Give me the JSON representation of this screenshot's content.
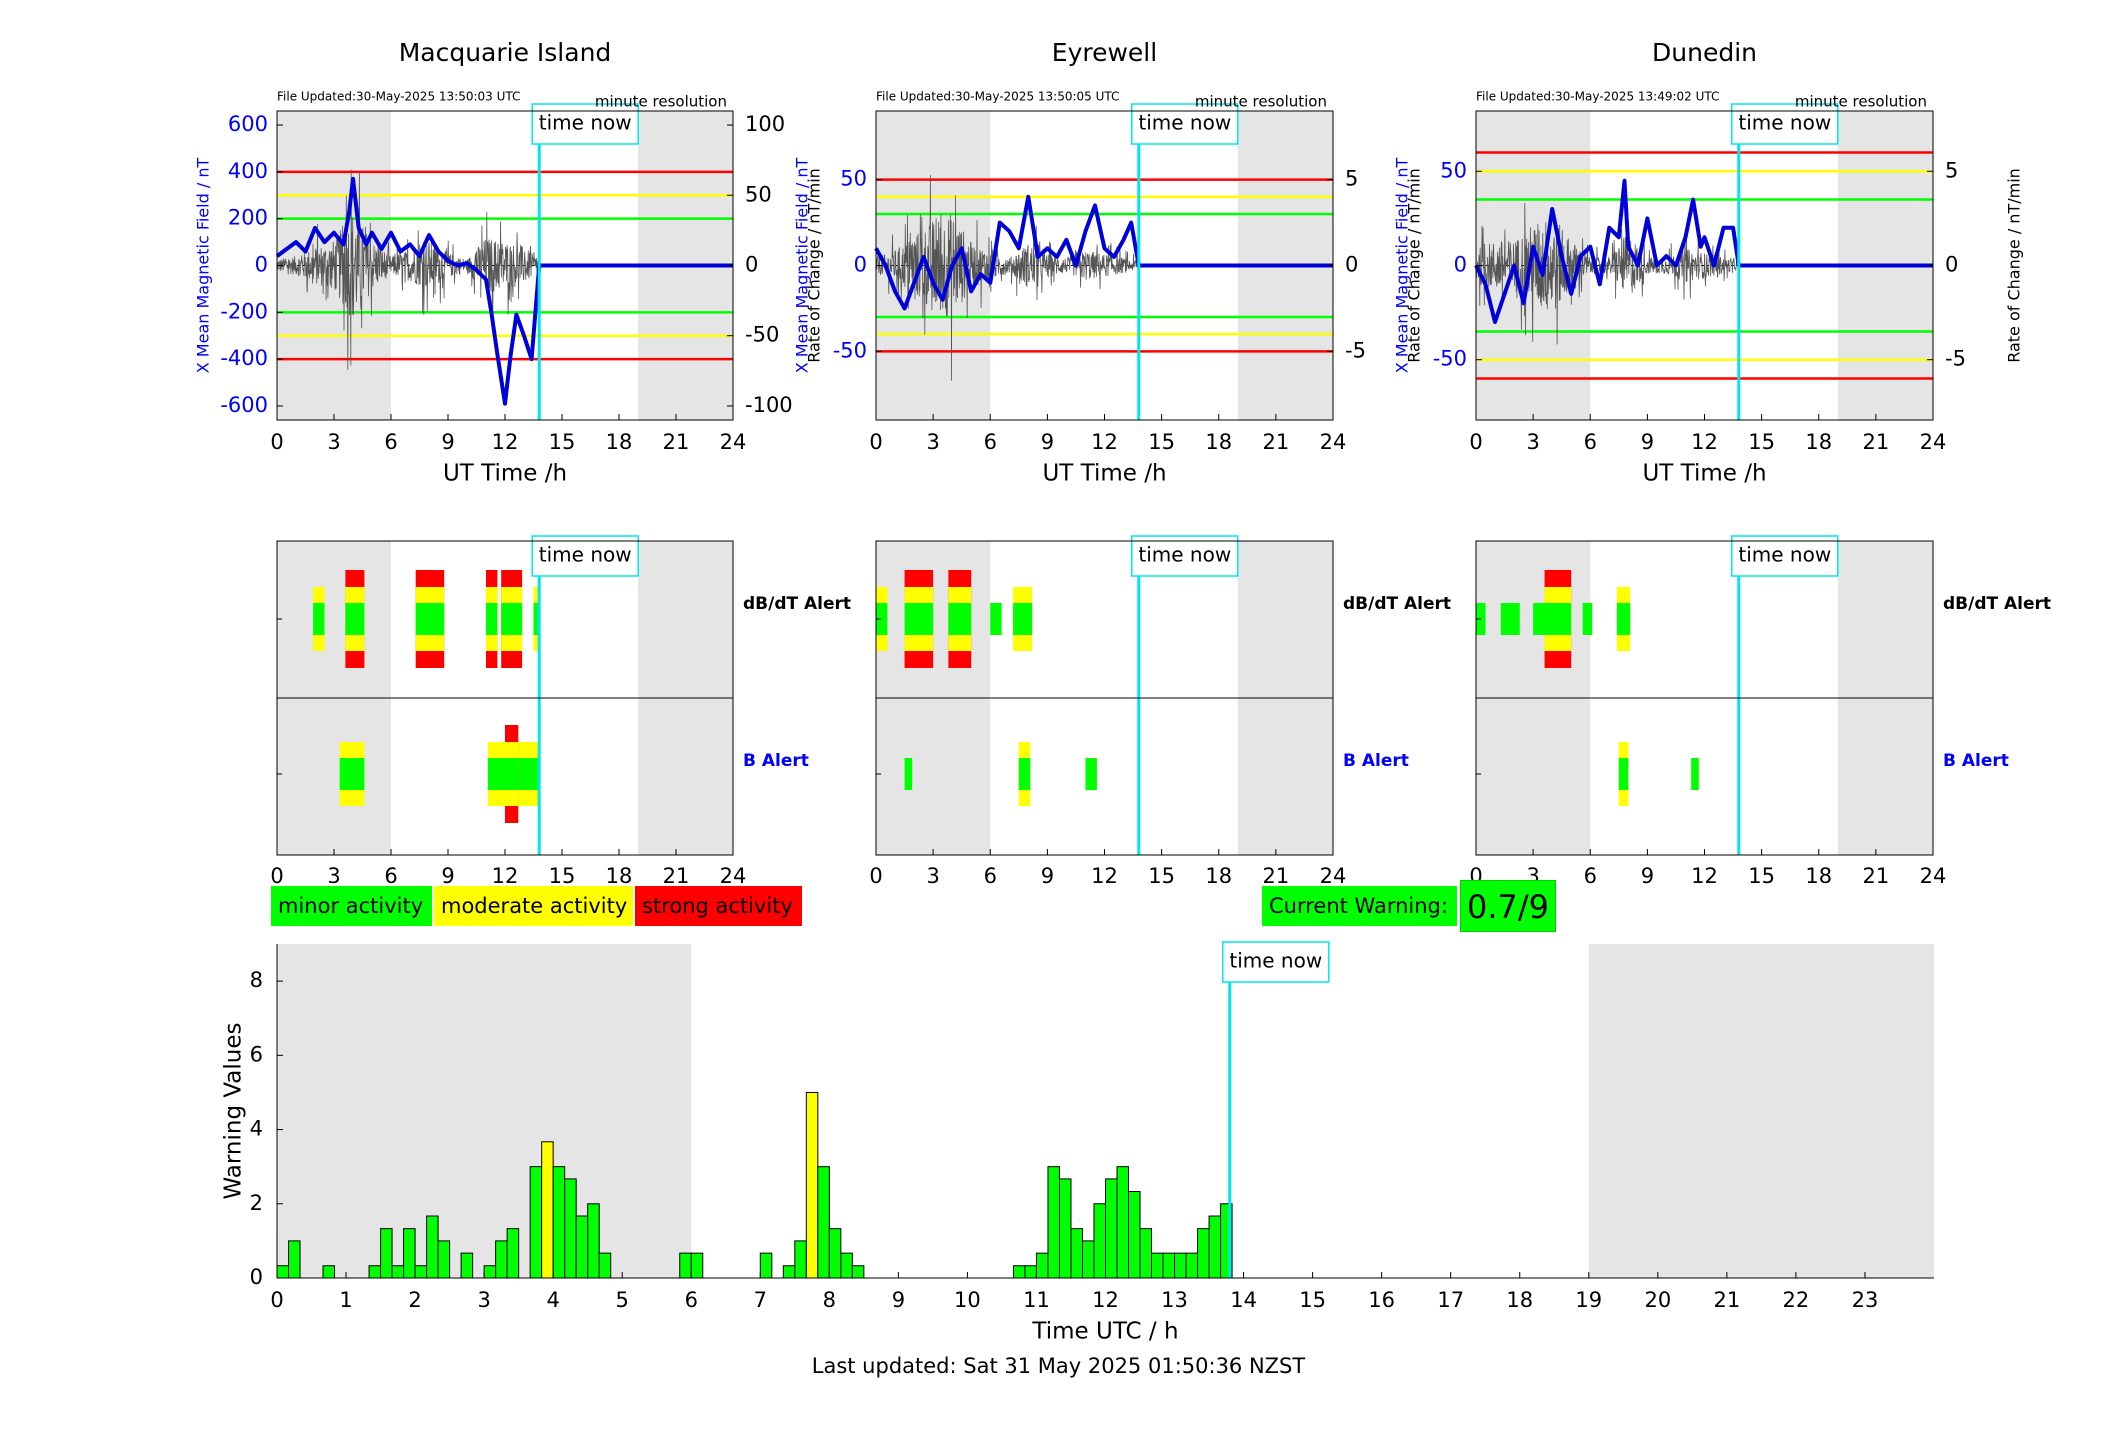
{
  "colors": {
    "minor": "#00ff00",
    "moderate": "#ffff00",
    "strong": "#ff0000",
    "field_line": "#0000dd",
    "now_line": "#00e5ee",
    "shade": "#e5e5e5",
    "rate_line": "#555555"
  },
  "chart_data": [
    {
      "type": "line",
      "title": "Macquarie Island",
      "file_updated": "File Updated:30-May-2025 13:50:03 UTC",
      "resolution": "minute resolution",
      "xlabel": "UT Time /h",
      "ylabel": "X Mean Magnetic Field / nT",
      "y2label": "Rate of Change / nT/min",
      "xlim": [
        0,
        24
      ],
      "xticks": [
        "0",
        "3",
        "6",
        "9",
        "12",
        "15",
        "18",
        "21",
        "24"
      ],
      "ylim": [
        -660,
        660
      ],
      "yticks": [
        "600",
        "400",
        "200",
        "0",
        "-200",
        "-400",
        "-600"
      ],
      "y2lim": [
        -110,
        110
      ],
      "y2ticks": [
        "100",
        "50",
        "0",
        "-50",
        "-100"
      ],
      "thresholds": [
        {
          "level": "strong",
          "values": [
            400,
            -400
          ]
        },
        {
          "level": "moderate",
          "values": [
            300,
            -300
          ]
        },
        {
          "level": "minor",
          "values": [
            200,
            -200
          ]
        }
      ],
      "shaded_ranges": [
        [
          0,
          6
        ],
        [
          19,
          24
        ]
      ],
      "time_now": 13.8,
      "time_now_label": "time now",
      "field_series": {
        "name": "X Mean Magnetic Field",
        "x": [
          0,
          0.5,
          1,
          1.5,
          2,
          2.5,
          3,
          3.5,
          3.8,
          4,
          4.3,
          4.7,
          5,
          5.5,
          6,
          6.5,
          7,
          7.5,
          8,
          8.5,
          9,
          9.5,
          10,
          10.5,
          11,
          11.3,
          11.6,
          12,
          12.3,
          12.6,
          13,
          13.4,
          13.8,
          24
        ],
        "values": [
          40,
          70,
          100,
          60,
          160,
          100,
          140,
          90,
          230,
          370,
          160,
          90,
          140,
          70,
          140,
          60,
          90,
          40,
          130,
          60,
          20,
          0,
          10,
          -20,
          -60,
          -210,
          -380,
          -590,
          -380,
          -210,
          -300,
          -400,
          0,
          0
        ]
      },
      "rate_series": {
        "name": "Rate of Change",
        "x": [
          0,
          1,
          2,
          3,
          4,
          5,
          6,
          7,
          8,
          9,
          10,
          11,
          12,
          13,
          13.8
        ],
        "amplitude": [
          10,
          15,
          30,
          40,
          90,
          40,
          15,
          25,
          40,
          20,
          10,
          45,
          40,
          30,
          10
        ]
      },
      "alerts": {
        "dbdt": {
          "label": "dB/dT Alert",
          "intervals": [
            [
              1.9,
              2.5,
              "moderate"
            ],
            [
              3.6,
              4.6,
              "strong"
            ],
            [
              7.3,
              8.8,
              "strong"
            ],
            [
              11,
              11.6,
              "strong"
            ],
            [
              11.8,
              12.9,
              "strong"
            ],
            [
              13.5,
              13.8,
              "moderate"
            ]
          ]
        },
        "b": {
          "label": "B Alert",
          "intervals": [
            [
              3.3,
              4.6,
              "moderate"
            ],
            [
              11.1,
              12,
              "moderate"
            ],
            [
              12,
              12.7,
              "strong"
            ],
            [
              12.7,
              13.8,
              "moderate"
            ]
          ]
        }
      }
    },
    {
      "type": "line",
      "title": "Eyrewell",
      "file_updated": "File Updated:30-May-2025 13:50:05 UTC",
      "resolution": "minute resolution",
      "xlabel": "UT Time /h",
      "ylabel": "X Mean Magnetic Field / nT",
      "y2label": "Rate of Change / nT/min",
      "xlim": [
        0,
        24
      ],
      "xticks": [
        "0",
        "3",
        "6",
        "9",
        "12",
        "15",
        "18",
        "21",
        "24"
      ],
      "ylim": [
        -90,
        90
      ],
      "yticks": [
        "50",
        "0",
        "-50"
      ],
      "y2lim": [
        -9,
        9
      ],
      "y2ticks": [
        "5",
        "0",
        "-5"
      ],
      "thresholds": [
        {
          "level": "strong",
          "values": [
            50,
            -50
          ]
        },
        {
          "level": "moderate",
          "values": [
            40,
            -40
          ]
        },
        {
          "level": "minor",
          "values": [
            30,
            -30
          ]
        }
      ],
      "shaded_ranges": [
        [
          0,
          6
        ],
        [
          19,
          24
        ]
      ],
      "time_now": 13.8,
      "time_now_label": "time now",
      "field_series": {
        "name": "X Mean Magnetic Field",
        "x": [
          0,
          0.5,
          1,
          1.5,
          2,
          2.5,
          3,
          3.5,
          4,
          4.5,
          5,
          5.5,
          6,
          6.5,
          7,
          7.5,
          8,
          8.5,
          9,
          9.5,
          10,
          10.5,
          11,
          11.5,
          12,
          12.5,
          13,
          13.4,
          13.8,
          24
        ],
        "values": [
          10,
          0,
          -15,
          -25,
          -10,
          5,
          -10,
          -20,
          0,
          10,
          -15,
          -5,
          -10,
          25,
          20,
          10,
          40,
          5,
          10,
          5,
          15,
          0,
          20,
          35,
          10,
          5,
          15,
          25,
          0,
          0
        ]
      },
      "rate_series": {
        "name": "Rate of Change",
        "x": [
          0,
          1,
          2,
          3,
          4,
          5,
          6,
          7,
          8,
          9,
          10,
          11,
          12,
          13,
          13.8
        ],
        "amplitude": [
          1,
          2,
          4,
          6,
          7,
          3,
          2,
          1,
          3,
          1.5,
          1,
          2,
          1.5,
          1,
          0.5
        ]
      },
      "alerts": {
        "dbdt": {
          "label": "dB/dT Alert",
          "intervals": [
            [
              0,
              0.6,
              "moderate"
            ],
            [
              1.5,
              3,
              "strong"
            ],
            [
              3.8,
              5,
              "strong"
            ],
            [
              6,
              6.6,
              "minor"
            ],
            [
              7.2,
              8.2,
              "moderate"
            ]
          ]
        },
        "b": {
          "label": "B Alert",
          "intervals": [
            [
              1.5,
              1.9,
              "minor"
            ],
            [
              7.5,
              8.1,
              "moderate"
            ],
            [
              11,
              11.6,
              "minor"
            ]
          ]
        }
      }
    },
    {
      "type": "line",
      "title": "Dunedin",
      "file_updated": "File Updated:30-May-2025 13:49:02 UTC",
      "resolution": "minute resolution",
      "xlabel": "UT Time /h",
      "ylabel": "X Mean Magnetic Field / nT",
      "y2label": "Rate of Change / nT/min",
      "xlim": [
        0,
        24
      ],
      "xticks": [
        "0",
        "3",
        "6",
        "9",
        "12",
        "15",
        "18",
        "21",
        "24"
      ],
      "ylim": [
        -82,
        82
      ],
      "yticks": [
        "50",
        "0",
        "-50"
      ],
      "y2lim": [
        -8.2,
        8.2
      ],
      "y2ticks": [
        "5",
        "0",
        "-5"
      ],
      "thresholds": [
        {
          "level": "strong",
          "values": [
            60,
            -60
          ]
        },
        {
          "level": "moderate",
          "values": [
            50,
            -50
          ]
        },
        {
          "level": "minor",
          "values": [
            35,
            -35
          ]
        }
      ],
      "shaded_ranges": [
        [
          0,
          6
        ],
        [
          19,
          24
        ]
      ],
      "time_now": 13.8,
      "time_now_label": "time now",
      "field_series": {
        "name": "X Mean Magnetic Field",
        "x": [
          0,
          0.5,
          1,
          1.5,
          2,
          2.5,
          3,
          3.5,
          4,
          4.5,
          5,
          5.5,
          6,
          6.5,
          7,
          7.5,
          7.8,
          8,
          8.5,
          9,
          9.5,
          10,
          10.5,
          11,
          11.4,
          11.8,
          12,
          12.5,
          13,
          13.5,
          13.8,
          24
        ],
        "values": [
          0,
          -10,
          -30,
          -15,
          0,
          -20,
          10,
          -5,
          30,
          5,
          -15,
          5,
          10,
          -10,
          20,
          15,
          45,
          10,
          0,
          25,
          0,
          5,
          0,
          15,
          35,
          10,
          15,
          0,
          20,
          20,
          0,
          0
        ]
      },
      "rate_series": {
        "name": "Rate of Change",
        "x": [
          0,
          1,
          2,
          3,
          4,
          5,
          6,
          7,
          8,
          9,
          10,
          11,
          12,
          13,
          13.8
        ],
        "amplitude": [
          2,
          3,
          3,
          5,
          6,
          3,
          1,
          1,
          4,
          1,
          1,
          2,
          1.5,
          1,
          0.5
        ]
      },
      "alerts": {
        "dbdt": {
          "label": "dB/dT Alert",
          "intervals": [
            [
              0,
              0.5,
              "minor"
            ],
            [
              1.3,
              2.3,
              "minor"
            ],
            [
              3,
              3.6,
              "minor"
            ],
            [
              3.6,
              5,
              "strong"
            ],
            [
              5.6,
              6.1,
              "minor"
            ],
            [
              7.4,
              8.1,
              "moderate"
            ]
          ]
        },
        "b": {
          "label": "B Alert",
          "intervals": [
            [
              7.5,
              8,
              "moderate"
            ],
            [
              11.3,
              11.7,
              "minor"
            ]
          ]
        }
      }
    },
    {
      "type": "bar",
      "title": "",
      "xlabel": "Time UTC / h",
      "ylabel": "Warning Values",
      "xlim": [
        0,
        24
      ],
      "ylim": [
        0,
        9
      ],
      "xticks": [
        "0",
        "1",
        "2",
        "3",
        "4",
        "5",
        "6",
        "7",
        "8",
        "9",
        "10",
        "11",
        "12",
        "13",
        "14",
        "15",
        "16",
        "17",
        "18",
        "19",
        "20",
        "21",
        "22",
        "23"
      ],
      "yticks": [
        "0",
        "2",
        "4",
        "6",
        "8"
      ],
      "shaded_ranges": [
        [
          0,
          6
        ],
        [
          19,
          24
        ]
      ],
      "time_now": 13.8,
      "time_now_label": "time now",
      "bar_width_h": 0.1667,
      "x": [
        0,
        0.1667,
        0.6667,
        1.3333,
        1.5,
        1.6667,
        1.8333,
        2,
        2.1667,
        2.3333,
        2.6667,
        3,
        3.1667,
        3.3333,
        3.6667,
        3.8333,
        4,
        4.1667,
        4.3333,
        4.5,
        4.6667,
        5.8333,
        6,
        7,
        7.3333,
        7.5,
        7.6667,
        7.8333,
        8,
        8.1667,
        8.3333,
        10.6667,
        10.8333,
        11,
        11.1667,
        11.3333,
        11.5,
        11.6667,
        11.8333,
        12,
        12.1667,
        12.3333,
        12.5,
        12.6667,
        12.8333,
        13,
        13.1667,
        13.3333,
        13.5,
        13.6667
      ],
      "values": [
        0.33,
        1,
        0.33,
        0.33,
        1.33,
        0.33,
        1.33,
        0.33,
        1.67,
        1,
        0.67,
        0.33,
        1,
        1.33,
        3,
        3.67,
        3,
        2.67,
        1.67,
        2,
        0.67,
        0.67,
        0.67,
        0.67,
        0.33,
        1,
        5,
        3,
        1.33,
        0.67,
        0.33,
        0.33,
        0.33,
        0.67,
        3,
        2.67,
        1.33,
        1,
        2,
        2.67,
        3,
        2.33,
        1.33,
        0.67,
        0.67,
        0.67,
        0.67,
        1.33,
        1.67,
        2
      ],
      "levels": [
        "minor",
        "minor",
        "minor",
        "minor",
        "minor",
        "minor",
        "minor",
        "minor",
        "minor",
        "minor",
        "minor",
        "minor",
        "minor",
        "minor",
        "minor",
        "moderate",
        "minor",
        "minor",
        "minor",
        "minor",
        "minor",
        "minor",
        "minor",
        "minor",
        "minor",
        "minor",
        "moderate",
        "minor",
        "minor",
        "minor",
        "minor",
        "minor",
        "minor",
        "minor",
        "minor",
        "minor",
        "minor",
        "minor",
        "minor",
        "minor",
        "minor",
        "minor",
        "minor",
        "minor",
        "minor",
        "minor",
        "minor",
        "minor",
        "minor",
        "minor"
      ]
    }
  ],
  "legend": {
    "minor_label": "minor activity",
    "moderate_label": "moderate activity",
    "strong_label": "strong activity"
  },
  "warning": {
    "label": "Current Warning:",
    "value": "0.7/9"
  },
  "footer": {
    "last_updated": "Last updated: Sat 31 May 2025 01:50:36 NZST"
  }
}
